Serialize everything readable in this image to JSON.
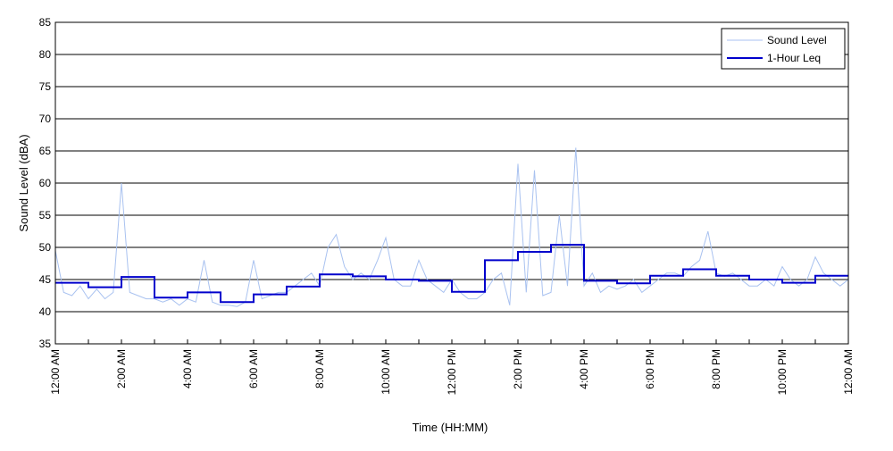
{
  "chart_data": {
    "type": "line",
    "xlabel": "Time (HH:MM)",
    "ylabel": "Sound Level (dBA)",
    "ylim": [
      35,
      85
    ],
    "yticks": [
      35,
      40,
      45,
      50,
      55,
      60,
      65,
      70,
      75,
      80,
      85
    ],
    "xlim_hours": [
      0,
      24
    ],
    "xtick_labels": [
      {
        "hour": 0,
        "label": "12:00 AM"
      },
      {
        "hour": 2,
        "label": "2:00 AM"
      },
      {
        "hour": 4,
        "label": "4:00 AM"
      },
      {
        "hour": 6,
        "label": "6:00 AM"
      },
      {
        "hour": 8,
        "label": "8:00 AM"
      },
      {
        "hour": 10,
        "label": "10:00 AM"
      },
      {
        "hour": 12,
        "label": "12:00 PM"
      },
      {
        "hour": 14,
        "label": "2:00 PM"
      },
      {
        "hour": 16,
        "label": "4:00 PM"
      },
      {
        "hour": 18,
        "label": "6:00 PM"
      },
      {
        "hour": 20,
        "label": "8:00 PM"
      },
      {
        "hour": 22,
        "label": "10:00 PM"
      },
      {
        "hour": 24,
        "label": "12:00 AM"
      }
    ],
    "grid": "horizontal",
    "legend_position": "top-right",
    "series": [
      {
        "name": "Sound Level",
        "color": "#a9c2f0",
        "x_hours": [
          0,
          0.25,
          0.5,
          0.75,
          1,
          1.25,
          1.5,
          1.75,
          2,
          2.25,
          2.5,
          2.75,
          3,
          3.25,
          3.5,
          3.75,
          4,
          4.25,
          4.5,
          4.75,
          5,
          5.25,
          5.5,
          5.75,
          6,
          6.25,
          6.5,
          6.75,
          7,
          7.25,
          7.5,
          7.75,
          8,
          8.25,
          8.5,
          8.75,
          9,
          9.25,
          9.5,
          9.75,
          10,
          10.25,
          10.5,
          10.75,
          11,
          11.25,
          11.5,
          11.75,
          12,
          12.25,
          12.5,
          12.75,
          13,
          13.25,
          13.5,
          13.75,
          14,
          14.25,
          14.5,
          14.75,
          15,
          15.25,
          15.5,
          15.75,
          16,
          16.25,
          16.5,
          16.75,
          17,
          17.25,
          17.5,
          17.75,
          18,
          18.25,
          18.5,
          18.75,
          19,
          19.25,
          19.5,
          19.75,
          20,
          20.25,
          20.5,
          20.75,
          21,
          21.25,
          21.5,
          21.75,
          22,
          22.25,
          22.5,
          22.75,
          23,
          23.25,
          23.5,
          23.75,
          24
        ],
        "values": [
          49.5,
          43,
          42.5,
          44,
          42,
          43.5,
          42,
          43,
          60,
          43,
          42.5,
          42,
          42,
          41.5,
          42,
          41,
          42,
          41.5,
          48,
          41.5,
          41,
          41,
          40.8,
          41.5,
          48,
          42,
          42.5,
          43,
          43,
          44,
          45,
          46,
          44,
          50,
          52,
          47,
          45,
          46,
          45,
          48,
          51.5,
          45,
          44,
          44,
          48,
          45,
          44,
          43,
          45,
          43,
          42,
          42,
          43,
          45,
          46,
          41,
          63,
          43,
          62,
          42.5,
          43,
          55,
          44,
          65.5,
          44,
          46,
          43,
          44,
          43.5,
          44,
          45,
          43,
          44,
          45,
          46,
          46,
          45.5,
          47,
          48,
          52.5,
          46,
          45.5,
          46,
          45,
          44,
          44,
          45,
          44,
          47,
          45,
          44,
          45,
          48.5,
          46,
          45,
          44,
          45
        ]
      },
      {
        "name": "1-Hour Leq",
        "color": "#0000cc",
        "step_values": [
          44.5,
          43.8,
          45.4,
          42.2,
          43.0,
          41.5,
          42.7,
          43.9,
          45.8,
          45.5,
          45.0,
          44.8,
          43.1,
          48.0,
          49.3,
          50.4,
          44.8,
          44.4,
          45.6,
          46.6,
          45.6,
          45.0,
          44.5,
          45.6
        ]
      }
    ]
  }
}
